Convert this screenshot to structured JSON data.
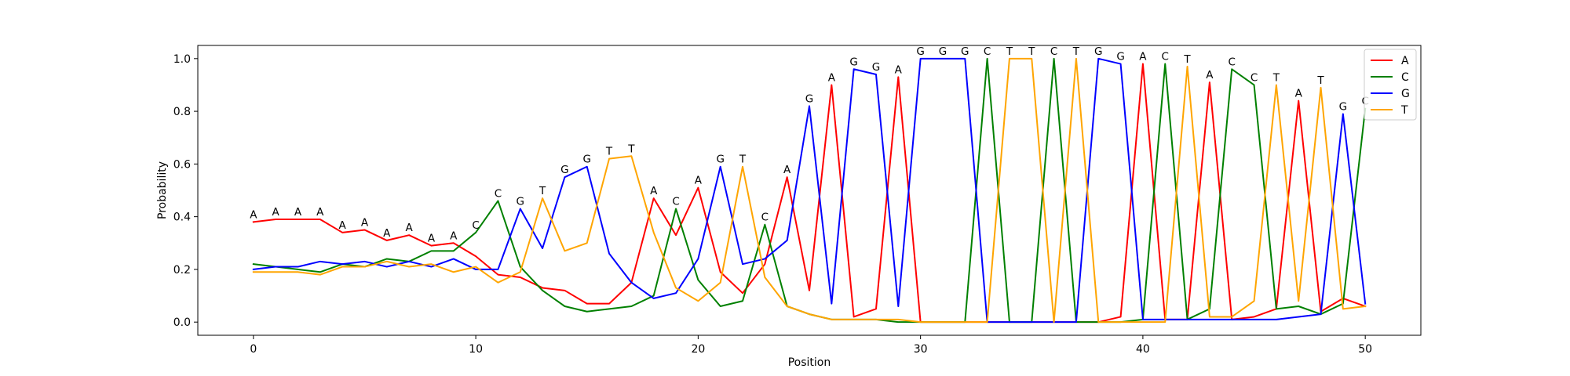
{
  "chart_data": {
    "type": "line",
    "title": "",
    "xlabel": "Position",
    "ylabel": "Probability",
    "xlim": [
      -2.5,
      52.5
    ],
    "ylim": [
      -0.05,
      1.05
    ],
    "xticks": [
      0,
      10,
      20,
      30,
      40,
      50
    ],
    "yticks": [
      0.0,
      0.2,
      0.4,
      0.6,
      0.8,
      1.0
    ],
    "xtick_labels": [
      "0",
      "10",
      "20",
      "30",
      "40",
      "50"
    ],
    "ytick_labels": [
      "0.0",
      "0.2",
      "0.4",
      "0.6",
      "0.8",
      "1.0"
    ],
    "grid": false,
    "legend_position": "top-right",
    "x": [
      0,
      1,
      2,
      3,
      4,
      5,
      6,
      7,
      8,
      9,
      10,
      11,
      12,
      13,
      14,
      15,
      16,
      17,
      18,
      19,
      20,
      21,
      22,
      23,
      24,
      25,
      26,
      27,
      28,
      29,
      30,
      31,
      32,
      33,
      34,
      35,
      36,
      37,
      38,
      39,
      40,
      41,
      42,
      43,
      44,
      45,
      46,
      47,
      48,
      49,
      50
    ],
    "series": [
      {
        "name": "A",
        "color": "#ff0000",
        "values": [
          0.38,
          0.39,
          0.39,
          0.39,
          0.34,
          0.35,
          0.31,
          0.33,
          0.29,
          0.3,
          0.25,
          0.18,
          0.17,
          0.13,
          0.12,
          0.07,
          0.07,
          0.15,
          0.47,
          0.33,
          0.51,
          0.19,
          0.11,
          0.22,
          0.55,
          0.12,
          0.9,
          0.02,
          0.05,
          0.93,
          0.0,
          0.0,
          0.0,
          0.0,
          0.0,
          0.0,
          0.0,
          0.0,
          0.0,
          0.02,
          0.98,
          0.01,
          0.01,
          0.91,
          0.01,
          0.02,
          0.05,
          0.84,
          0.04,
          0.09,
          0.06
        ]
      },
      {
        "name": "C",
        "color": "#008000",
        "values": [
          0.22,
          0.21,
          0.2,
          0.19,
          0.22,
          0.21,
          0.24,
          0.23,
          0.27,
          0.27,
          0.34,
          0.46,
          0.21,
          0.12,
          0.06,
          0.04,
          0.05,
          0.06,
          0.1,
          0.43,
          0.16,
          0.06,
          0.08,
          0.37,
          0.06,
          0.03,
          0.01,
          0.01,
          0.01,
          0.0,
          0.0,
          0.0,
          0.0,
          1.0,
          0.0,
          0.0,
          1.0,
          0.0,
          0.0,
          0.0,
          0.01,
          0.98,
          0.01,
          0.05,
          0.96,
          0.9,
          0.05,
          0.06,
          0.03,
          0.07,
          0.81
        ]
      },
      {
        "name": "G",
        "color": "#0000ff",
        "values": [
          0.2,
          0.21,
          0.21,
          0.23,
          0.22,
          0.23,
          0.21,
          0.23,
          0.21,
          0.24,
          0.2,
          0.2,
          0.43,
          0.28,
          0.55,
          0.59,
          0.26,
          0.15,
          0.09,
          0.11,
          0.24,
          0.59,
          0.22,
          0.24,
          0.31,
          0.82,
          0.07,
          0.96,
          0.94,
          0.06,
          1.0,
          1.0,
          1.0,
          0.0,
          0.0,
          0.0,
          0.0,
          0.0,
          1.0,
          0.98,
          0.01,
          0.01,
          0.01,
          0.01,
          0.01,
          0.01,
          0.01,
          0.02,
          0.03,
          0.79,
          0.07
        ]
      },
      {
        "name": "T",
        "color": "#ffa500",
        "values": [
          0.19,
          0.19,
          0.19,
          0.18,
          0.21,
          0.21,
          0.23,
          0.21,
          0.22,
          0.19,
          0.21,
          0.15,
          0.19,
          0.47,
          0.27,
          0.3,
          0.62,
          0.63,
          0.34,
          0.13,
          0.08,
          0.15,
          0.59,
          0.17,
          0.06,
          0.03,
          0.01,
          0.01,
          0.01,
          0.01,
          0.0,
          0.0,
          0.0,
          0.0,
          1.0,
          1.0,
          0.0,
          1.0,
          0.0,
          0.0,
          0.0,
          0.0,
          0.97,
          0.02,
          0.02,
          0.08,
          0.9,
          0.08,
          0.89,
          0.05,
          0.06
        ]
      }
    ],
    "annotations": [
      "A",
      "A",
      "A",
      "A",
      "A",
      "A",
      "A",
      "A",
      "A",
      "A",
      "C",
      "C",
      "G",
      "T",
      "G",
      "G",
      "T",
      "T",
      "A",
      "C",
      "A",
      "G",
      "T",
      "C",
      "A",
      "G",
      "A",
      "G",
      "G",
      "A",
      "G",
      "G",
      "G",
      "C",
      "T",
      "T",
      "C",
      "T",
      "G",
      "G",
      "A",
      "C",
      "T",
      "A",
      "C",
      "C",
      "T",
      "A",
      "T",
      "G",
      "C"
    ]
  }
}
